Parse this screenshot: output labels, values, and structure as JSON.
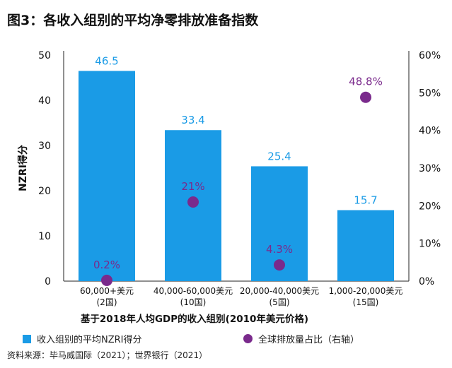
{
  "title": "图3：各收入组别的平均净零排放准备指数",
  "source": "资料来源：毕马威国际（2021）；世界银行（2021）",
  "colors": {
    "bar": "#1a9be6",
    "dot": "#7a2a8c",
    "bar_label": "#1a9be6",
    "dot_label": "#7a2a8c"
  },
  "legend": {
    "bar": "收入组别的平均NZRI得分",
    "dot": "全球排放量占比（右轴）"
  },
  "chart_data": {
    "type": "bar",
    "categories": [
      [
        "60,000+美元",
        "(2国)"
      ],
      [
        "40,000-60,000美元",
        "(10国)"
      ],
      [
        "20,000-40,000美元",
        "(5国)"
      ],
      [
        "1,000-20,000美元",
        "(15国)"
      ]
    ],
    "xlabel": "基于2018年人均GDP的收入组别(2010年美元价格)",
    "ylabel": "NZRI得分",
    "ylim": [
      0,
      50
    ],
    "yticks": [
      0,
      10,
      20,
      30,
      40,
      50
    ],
    "y2lim": [
      0,
      60
    ],
    "y2ticks": [
      "0%",
      "10%",
      "20%",
      "30%",
      "40%",
      "50%",
      "60%"
    ],
    "series": [
      {
        "name": "收入组别的平均NZRI得分",
        "kind": "bar",
        "axis": "left",
        "values": [
          46.5,
          33.4,
          25.4,
          15.7
        ],
        "labels": [
          "46.5",
          "33.4",
          "25.4",
          "15.7"
        ]
      },
      {
        "name": "全球排放量占比（右轴）",
        "kind": "scatter",
        "axis": "right",
        "values": [
          0.2,
          21,
          4.3,
          48.8
        ],
        "labels": [
          "0.2%",
          "21%",
          "4.3%",
          "48.8%"
        ]
      }
    ],
    "grid": false,
    "legend_position": "bottom"
  }
}
